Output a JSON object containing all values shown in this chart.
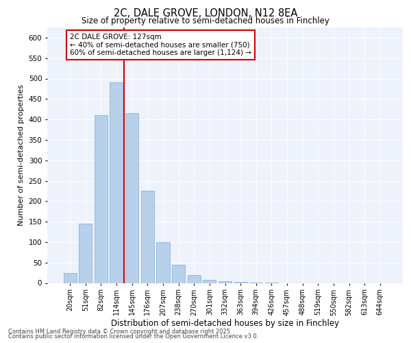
{
  "title_line1": "2C, DALE GROVE, LONDON, N12 8EA",
  "title_line2": "Size of property relative to semi-detached houses in Finchley",
  "xlabel": "Distribution of semi-detached houses by size in Finchley",
  "ylabel": "Number of semi-detached properties",
  "annotation_title": "2C DALE GROVE: 127sqm",
  "annotation_line1": "← 40% of semi-detached houses are smaller (750)",
  "annotation_line2": "60% of semi-detached houses are larger (1,124) →",
  "footer_line1": "Contains HM Land Registry data © Crown copyright and database right 2025.",
  "footer_line2": "Contains public sector information licensed under the Open Government Licence v3.0.",
  "bar_color": "#b8d0ea",
  "bar_edge_color": "#89b4d9",
  "marker_line_color": "#cc0000",
  "annotation_box_color": "#cc0000",
  "background_color": "#eef2fb",
  "grid_color": "#ffffff",
  "categories": [
    "20sqm",
    "51sqm",
    "82sqm",
    "114sqm",
    "145sqm",
    "176sqm",
    "207sqm",
    "238sqm",
    "270sqm",
    "301sqm",
    "332sqm",
    "363sqm",
    "394sqm",
    "426sqm",
    "457sqm",
    "488sqm",
    "519sqm",
    "550sqm",
    "582sqm",
    "613sqm",
    "644sqm"
  ],
  "values": [
    25,
    145,
    410,
    490,
    415,
    225,
    100,
    45,
    20,
    8,
    5,
    2,
    1,
    1,
    0,
    0,
    0,
    0,
    0,
    0,
    0
  ],
  "property_bin_index": 3.5,
  "ylim": [
    0,
    625
  ],
  "yticks": [
    0,
    50,
    100,
    150,
    200,
    250,
    300,
    350,
    400,
    450,
    500,
    550,
    600
  ]
}
